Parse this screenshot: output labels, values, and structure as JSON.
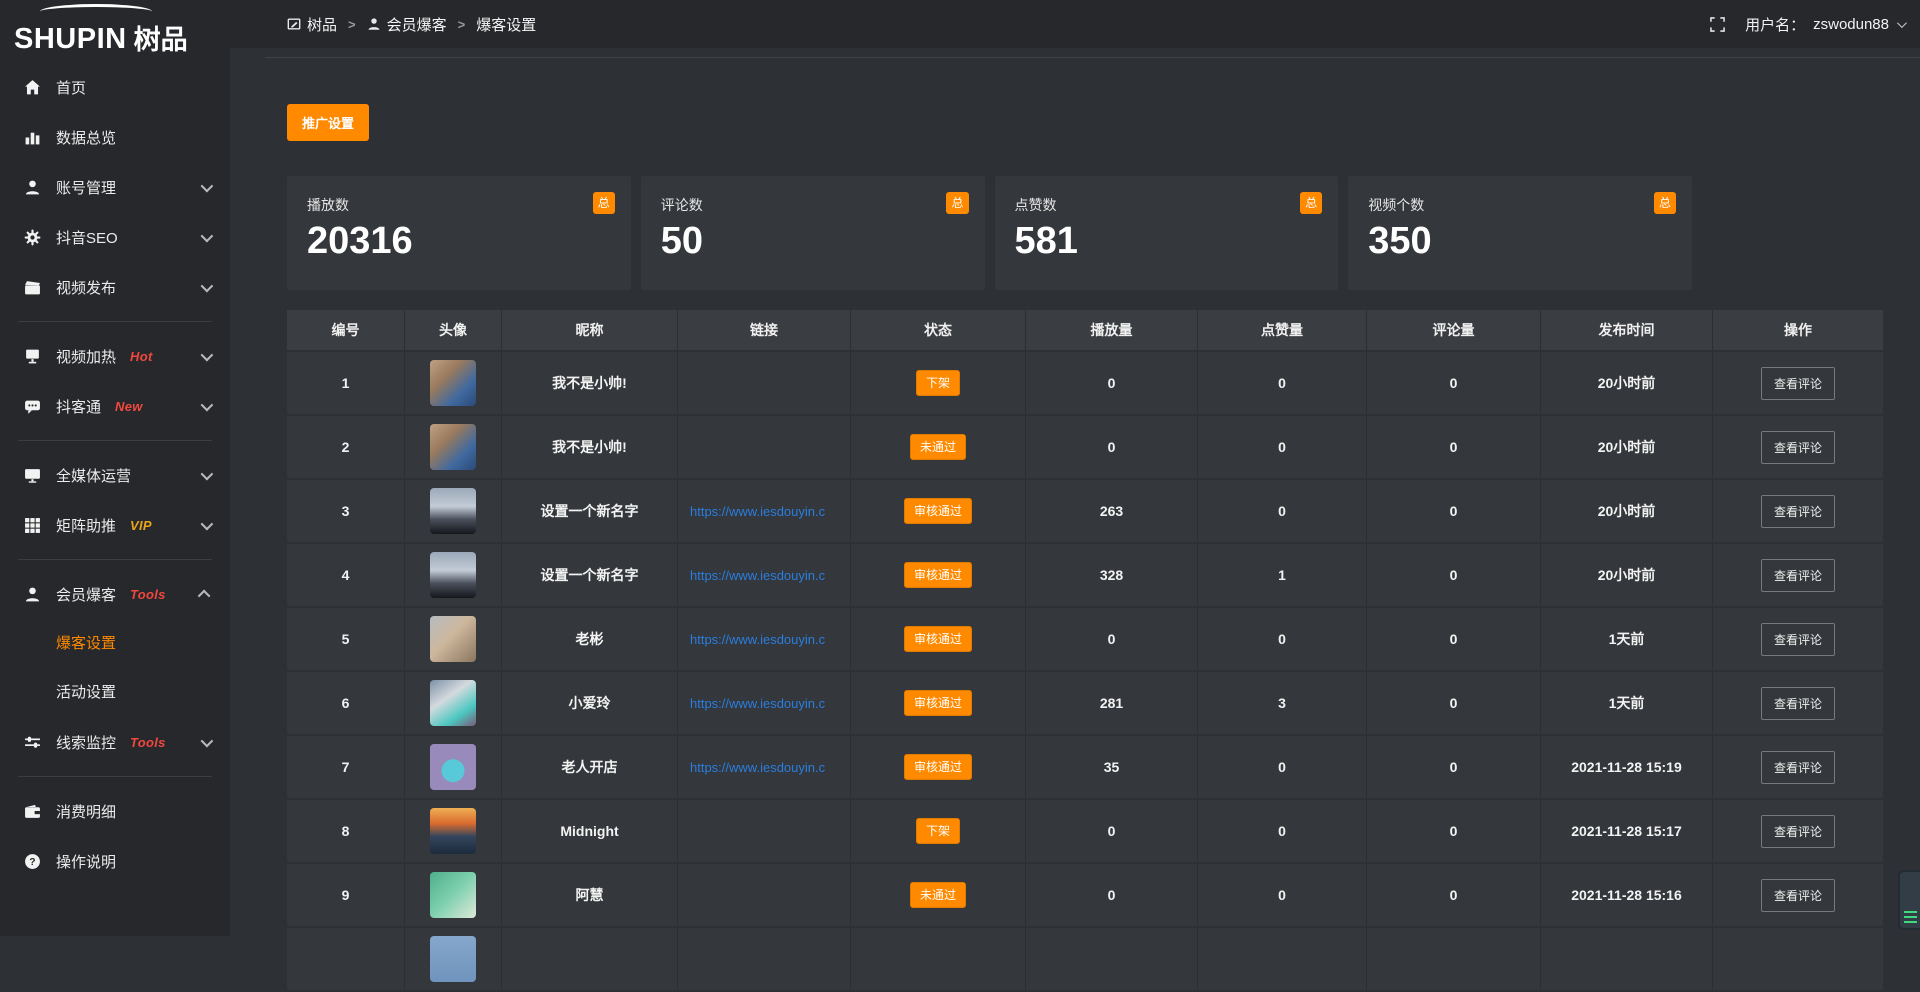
{
  "brand": {
    "logo_text": "SHUPIN",
    "logo_cn": "树品"
  },
  "topbar": {
    "breadcrumb": [
      {
        "label": "树品"
      },
      {
        "label": "会员爆客"
      },
      {
        "label": "爆客设置"
      }
    ],
    "breadcrumb_separator": ">",
    "username_label": "用户名：",
    "username": "zswodun88"
  },
  "sidebar": {
    "items": [
      {
        "key": "home",
        "icon": "home",
        "label": "首页"
      },
      {
        "key": "data-overview",
        "icon": "chart",
        "label": "数据总览"
      },
      {
        "key": "account-management",
        "icon": "user",
        "label": "账号管理",
        "chevron": "down"
      },
      {
        "key": "douyin-seo",
        "icon": "gear",
        "label": "抖音SEO",
        "chevron": "down"
      },
      {
        "key": "video-publish",
        "icon": "clapper",
        "label": "视频发布",
        "chevron": "down"
      },
      {
        "divider": true
      },
      {
        "key": "video-heat",
        "icon": "heat",
        "label": "视频加热",
        "badge": "Hot",
        "badge_style": "red",
        "chevron": "down"
      },
      {
        "key": "douketong",
        "icon": "chat",
        "label": "抖客通",
        "badge": "New",
        "badge_style": "red",
        "chevron": "down"
      },
      {
        "divider": true
      },
      {
        "key": "all-media-operation",
        "icon": "monitor",
        "label": "全媒体运营",
        "chevron": "down"
      },
      {
        "key": "matrix-boost",
        "icon": "grid",
        "label": "矩阵助推",
        "badge": "VIP",
        "badge_style": "gold",
        "chevron": "down"
      },
      {
        "divider": true
      },
      {
        "key": "member-baoke",
        "icon": "user",
        "label": "会员爆客",
        "badge": "Tools",
        "badge_style": "red",
        "chevron": "up",
        "children": [
          {
            "key": "baoke-settings",
            "label": "爆客设置",
            "active": true
          },
          {
            "key": "activity-settings",
            "label": "活动设置"
          }
        ]
      },
      {
        "key": "clue-monitor",
        "icon": "sliders",
        "label": "线索监控",
        "badge": "Tools",
        "badge_style": "red",
        "chevron": "down"
      },
      {
        "divider": true
      },
      {
        "key": "consumption-detail",
        "icon": "wallet",
        "label": "消费明细"
      },
      {
        "key": "operation-guide",
        "icon": "question",
        "label": "操作说明"
      }
    ]
  },
  "main": {
    "promo_button": "推广设置",
    "stats": [
      {
        "label": "播放数",
        "value": "20316",
        "badge": "总"
      },
      {
        "label": "评论数",
        "value": "50",
        "badge": "总"
      },
      {
        "label": "点赞数",
        "value": "581",
        "badge": "总"
      },
      {
        "label": "视频个数",
        "value": "350",
        "badge": "总"
      }
    ],
    "table": {
      "columns": [
        "编号",
        "头像",
        "昵称",
        "链接",
        "状态",
        "播放量",
        "点赞量",
        "评论量",
        "发布时间",
        "操作"
      ],
      "action_label": "查看评论",
      "rows": [
        {
          "id": "1",
          "avatar": "boy",
          "nickname": "我不是小帅!",
          "link": "",
          "status": "下架",
          "plays": "0",
          "likes": "0",
          "comments": "0",
          "time": "20小时前",
          "action": "查看评论"
        },
        {
          "id": "2",
          "avatar": "boy",
          "nickname": "我不是小帅!",
          "link": "",
          "status": "未通过",
          "plays": "0",
          "likes": "0",
          "comments": "0",
          "time": "20小时前",
          "action": "查看评论"
        },
        {
          "id": "3",
          "avatar": "sky",
          "nickname": "设置一个新名字",
          "link": "https://www.iesdouyin.c",
          "status": "审核通过",
          "plays": "263",
          "likes": "0",
          "comments": "0",
          "time": "20小时前",
          "action": "查看评论"
        },
        {
          "id": "4",
          "avatar": "sky",
          "nickname": "设置一个新名字",
          "link": "https://www.iesdouyin.c",
          "status": "审核通过",
          "plays": "328",
          "likes": "1",
          "comments": "0",
          "time": "20小时前",
          "action": "查看评论"
        },
        {
          "id": "5",
          "avatar": "man",
          "nickname": "老彬",
          "link": "https://www.iesdouyin.c",
          "status": "审核通过",
          "plays": "0",
          "likes": "0",
          "comments": "0",
          "time": "1天前",
          "action": "查看评论"
        },
        {
          "id": "6",
          "avatar": "girl",
          "nickname": "小爱玲",
          "link": "https://www.iesdouyin.c",
          "status": "审核通过",
          "plays": "281",
          "likes": "3",
          "comments": "0",
          "time": "1天前",
          "action": "查看评论"
        },
        {
          "id": "7",
          "avatar": "alien",
          "nickname": "老人开店",
          "link": "https://www.iesdouyin.c",
          "status": "审核通过",
          "plays": "35",
          "likes": "0",
          "comments": "0",
          "time": "2021-11-28 15:19",
          "action": "查看评论"
        },
        {
          "id": "8",
          "avatar": "sunset",
          "nickname": "Midnight",
          "link": "",
          "status": "下架",
          "plays": "0",
          "likes": "0",
          "comments": "0",
          "time": "2021-11-28 15:17",
          "action": "查看评论"
        },
        {
          "id": "9",
          "avatar": "green",
          "nickname": "阿慧",
          "link": "",
          "status": "未通过",
          "plays": "0",
          "likes": "0",
          "comments": "0",
          "time": "2021-11-28 15:16",
          "action": "查看评论"
        },
        {
          "id": "",
          "avatar": "blue",
          "nickname": "",
          "link": "",
          "status": "",
          "plays": "",
          "likes": "",
          "comments": "",
          "time": "",
          "action": "",
          "partial": true
        }
      ]
    }
  },
  "colors": {
    "accent": "#ff8a00",
    "link_blue": "#2b7de0",
    "hot_red": "#f0483e",
    "vip_gold": "#e8a41c"
  }
}
